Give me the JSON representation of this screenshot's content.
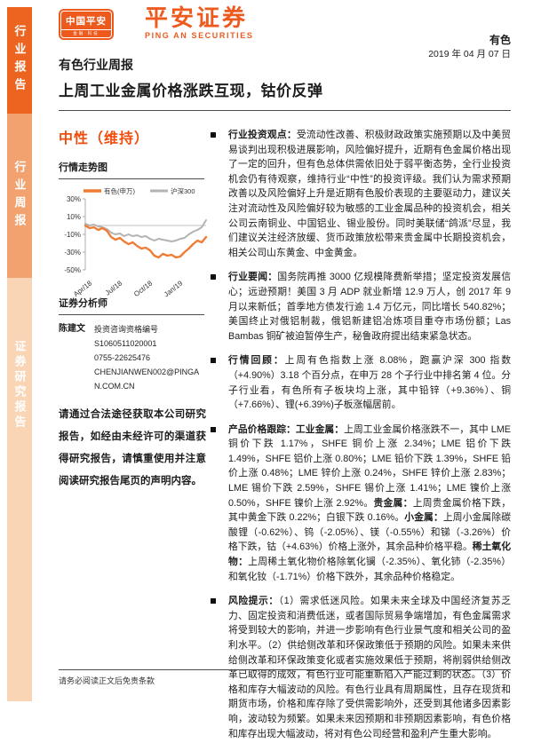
{
  "sidebar": {
    "blocks": [
      {
        "label": "行业报告"
      },
      {
        "label": "行业周报"
      },
      {
        "label": "证券研究报告"
      }
    ]
  },
  "header": {
    "logo_text": "中国平安",
    "logo_tagline": "金融·科技",
    "brand_cn": "平安证券",
    "brand_en": "PING AN SECURITIES",
    "sector": "有色",
    "date": "2019 年 04 月 07 日",
    "report_type": "有色行业周报",
    "title": "上周工业金属价格涨跌互现，钴价反弹"
  },
  "left_column": {
    "rating": "中性（维持）",
    "chart_section_title": "行情走势图",
    "analyst_section_title": "证券分析师",
    "analyst": {
      "name": "陈建文",
      "license_label": "投资咨询资格编号",
      "license_no": "S1060511020001",
      "phone": "0755-22625476",
      "email": "CHENJIANWEN002@PINGAN.COM.CN"
    },
    "disclaimer": "请通过合法途径获取本公司研究报告，如经由未经许可的渠道获得研究报告，请慎重使用并注意阅读研究报告尾页的声明内容。"
  },
  "chart_data": {
    "type": "line",
    "title": "行情走势图",
    "x_tick_labels": [
      "Apr/18",
      "Jul/18",
      "Oct/18",
      "Jan/19"
    ],
    "x_tick_positions": [
      0,
      7,
      14,
      21
    ],
    "y_ticks": [
      30,
      10,
      -10,
      -30,
      -50
    ],
    "ylim": [
      -50,
      30
    ],
    "y_unit": "%",
    "legend_position": "top",
    "grid": false,
    "series": [
      {
        "name": "有色(申万)",
        "color": "#f07c33",
        "width": 2.4,
        "values": [
          0,
          -3,
          -2,
          -5,
          -3,
          -6,
          -13,
          -16,
          -14,
          -18,
          -21,
          -19,
          -23,
          -26,
          -25,
          -28,
          -34,
          -36,
          -32,
          -34,
          -33,
          -36,
          -35,
          -30,
          -26,
          -21,
          -17,
          -19,
          -13
        ]
      },
      {
        "name": "沪深300",
        "color": "#b3b3b3",
        "width": 2.0,
        "values": [
          2,
          0,
          1,
          -1,
          -2,
          -4,
          -8,
          -10,
          -9,
          -12,
          -10,
          -12,
          -11,
          -13,
          -12,
          -15,
          -17,
          -15,
          -16,
          -17,
          -18,
          -17,
          -15,
          -14,
          -10,
          -7,
          -5,
          -2,
          6
        ]
      }
    ]
  },
  "bullets": [
    {
      "segments": [
        {
          "bold": true,
          "text": "行业投资观点："
        },
        {
          "bold": false,
          "text": "受流动性改善、积极财政政策实施预期以及中美贸易谈判出现积极进展影响，风险偏好提升，近期有色金属价格出现了一定的回升，但有色总体供需依旧处于弱平衡态势，全行业投资机会仍有待观察，维持行业“中性”的投资评级。我们认为需求预期改善以及风险偏好上升是近期有色股价表现的主要驱动力，建议关注对流动性及风险偏好较为敏感的工业金属品种的投资机会，相关公司云南铜业、中国铝业、锡业股份。同时美联储“鸽派”尽显，我们建议关注经济放缓、货币政策放松带来贵金属中长期投资机会，相关公司山东黄金、中金黄金。"
        }
      ]
    },
    {
      "segments": [
        {
          "bold": true,
          "text": "行业要闻："
        },
        {
          "bold": false,
          "text": "国务院再推 3000 亿规模降费新举措；坚定投资发展信心；远逊预期！美国 3 月 ADP 就业新增 12.9 万人，创 2017 年 9 月以来新低；首季地方债发行逾 1.4 万亿元，同比增长 540.82%；美国终止对俄铝制裁，俄铝新建铝冶炼项目重夺市场份额；Las Bambas 铜矿被迫暂停生产，秘鲁政府提出结束紧急状态。"
        }
      ]
    },
    {
      "segments": [
        {
          "bold": true,
          "text": "行情回顾："
        },
        {
          "bold": false,
          "text": "上周有色指数上涨 8.08%，跑赢沪深 300 指数（+4.90%）3.18 个百分点，在申万 28 个子行业中排名第 4 位。分子行业看，有色所有子板块均上涨，其中铅锌（+9.36%）、铜（+7.66%）、锂(+6.39%)子板涨幅居前。"
        }
      ]
    },
    {
      "segments": [
        {
          "bold": true,
          "text": "产品价格跟踪：工业金属："
        },
        {
          "bold": false,
          "text": "上周工业金属价格涨跌不一，其中 LME 铜价下跌 1.17%，SHFE 铜价上涨 2.34%；LME 铝价下跌 1.49%，SHFE 铝价上涨 0.80%；LME 铅价下跌 1.39%，SHFE 铅价上涨 0.48%；LME 锌价上涨 0.24%，SHFE 锌价上涨 2.83%；LME 锡价下跌 2.59%，SHFE 锡价上涨 1.41%；LME 镍价上涨 0.50%，SHFE 镍价上涨 2.92%。"
        },
        {
          "bold": true,
          "text": "贵金属："
        },
        {
          "bold": false,
          "text": "上周贵金属价格下跌，其中黄金下跌 0.22%；白银下跌 0.16%。"
        },
        {
          "bold": true,
          "text": "小金属："
        },
        {
          "bold": false,
          "text": "上周小金属除碳酸锂（-0.62%）、钨（-2.05%）、镁（-0.55%）和锑（-3.26%）价格下跌，钴（+4.63%）价格上涨外，其余品种价格平稳。"
        },
        {
          "bold": true,
          "text": "稀土氧化物："
        },
        {
          "bold": false,
          "text": "上周稀土氧化物价格除氧化镧（-2.35%）、氧化铈（-2.35%）和氧化钕（-1.71%）价格下跌外，其余品种价格稳定。"
        }
      ]
    },
    {
      "segments": [
        {
          "bold": true,
          "text": "风险提示："
        },
        {
          "bold": false,
          "text": "（1）需求低迷风险。如果未来全球及中国经济复苏乏力、固定投资和消费低迷，或者国际贸易争端增加，有色金属需求将受到较大的影响，并进一步影响有色行业景气度和相关公司的盈利水平。（2）供给侧改革和环保政策低于预期的风险。如果未来供给侧改革和环保政策变化或者实施效果低于预期，将削弱供给侧改革已取得的成效，有色行业可能重新陷入产能过剩的状态。（3）价格和库存大幅波动的风险。有色行业具有周期属性，且存在现货和期货市场，价格和库存除了受供需影响外，还受到其他诸多因素影响，波动较为频繁。如果未来因预期和非预期因素影响，有色价格和库存出现大幅波动，将对有色公司经营和盈利产生重大影响。"
        }
      ]
    }
  ],
  "footer": {
    "note": "请务必阅读正文后免责条款"
  },
  "colors": {
    "brand_orange": "#ee5a1e",
    "ribbon_dark": "#ec6420",
    "ribbon_mid": "#f2a26e",
    "ribbon_light": "#f9d4b5",
    "rating_orange": "#ee4d0d",
    "chart_orange": "#f07c33",
    "chart_gray": "#b3b3b3"
  }
}
